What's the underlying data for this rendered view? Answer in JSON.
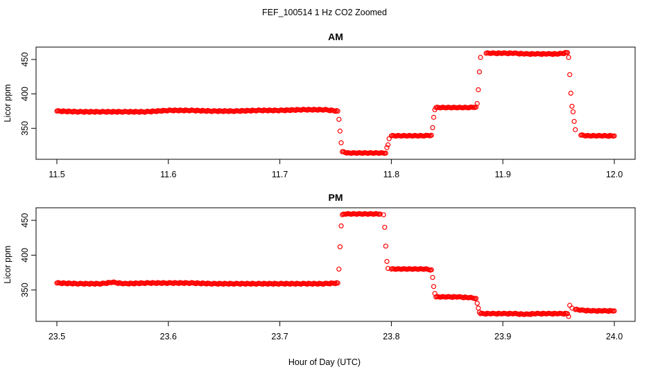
{
  "figure": {
    "title": "FEF_100514  1 Hz CO2 Zoomed",
    "xlabel": "Hour of Day (UTC)"
  },
  "chart_data": [
    {
      "type": "scatter",
      "title": "AM",
      "xlabel": "Hour of Day (UTC)",
      "ylabel": "Licor ppm",
      "xlim": [
        11.5,
        12.0
      ],
      "ylim": [
        305,
        468
      ],
      "xticks": [
        11.5,
        11.6,
        11.7,
        11.8,
        11.9,
        12.0
      ],
      "xtick_labels": [
        "11.5",
        "11.6",
        "11.7",
        "11.8",
        "11.9",
        "12.0"
      ],
      "yticks": [
        350,
        400,
        450
      ],
      "ytick_labels": [
        "350",
        "400",
        "450"
      ],
      "grid": false,
      "marker_color": "#ff0000",
      "series": [
        {
          "x": [
            11.5,
            11.52,
            11.54,
            11.56,
            11.58,
            11.6,
            11.62,
            11.64,
            11.66,
            11.68,
            11.7,
            11.72,
            11.74,
            11.752,
            11.753,
            11.754,
            11.755,
            11.756,
            11.76,
            11.765,
            11.77,
            11.775,
            11.78,
            11.785,
            11.79,
            11.795,
            11.796,
            11.797,
            11.798,
            11.8,
            11.805,
            11.81,
            11.815,
            11.82,
            11.825,
            11.83,
            11.836,
            11.837,
            11.838,
            11.839,
            11.84,
            11.845,
            11.85,
            11.855,
            11.86,
            11.865,
            11.87,
            11.876,
            11.877,
            11.878,
            11.879,
            11.88,
            11.885,
            11.89,
            11.9,
            11.91,
            11.92,
            11.93,
            11.94,
            11.95,
            11.958,
            11.959,
            11.96,
            11.961,
            11.962,
            11.963,
            11.964,
            11.965,
            11.97,
            11.975,
            11.98,
            11.985,
            11.99,
            12.0
          ],
          "y": [
            375,
            374,
            374,
            374,
            374,
            376,
            376,
            375,
            375,
            376,
            376,
            377,
            377,
            375,
            363,
            346,
            329,
            316,
            314,
            314,
            314,
            314,
            314,
            314,
            314,
            314,
            322,
            326,
            335,
            339,
            339,
            339,
            339,
            339,
            339,
            339,
            340,
            351,
            366,
            377,
            380,
            380,
            380,
            380,
            380,
            380,
            380,
            381,
            386,
            406,
            432,
            453,
            459,
            459,
            459,
            459,
            458,
            458,
            458,
            458,
            460,
            453,
            428,
            401,
            382,
            374,
            360,
            348,
            340,
            339,
            339,
            339,
            339,
            339
          ]
        }
      ]
    },
    {
      "type": "scatter",
      "title": "PM",
      "xlabel": "Hour of Day (UTC)",
      "ylabel": "Licor ppm",
      "xlim": [
        23.5,
        24.0
      ],
      "ylim": [
        305,
        468
      ],
      "xticks": [
        23.5,
        23.6,
        23.7,
        23.8,
        23.9,
        24.0
      ],
      "xtick_labels": [
        "23.5",
        "23.6",
        "23.7",
        "23.8",
        "23.9",
        "24.0"
      ],
      "yticks": [
        350,
        400,
        450
      ],
      "ytick_labels": [
        "350",
        "400",
        "450"
      ],
      "grid": false,
      "marker_color": "#ff0000",
      "series": [
        {
          "x": [
            23.5,
            23.52,
            23.54,
            23.55,
            23.56,
            23.58,
            23.6,
            23.62,
            23.64,
            23.66,
            23.68,
            23.7,
            23.72,
            23.74,
            23.752,
            23.753,
            23.754,
            23.755,
            23.756,
            23.76,
            23.765,
            23.77,
            23.775,
            23.78,
            23.785,
            23.79,
            23.793,
            23.794,
            23.795,
            23.796,
            23.797,
            23.8,
            23.805,
            23.81,
            23.815,
            23.82,
            23.825,
            23.83,
            23.836,
            23.837,
            23.838,
            23.839,
            23.84,
            23.845,
            23.85,
            23.86,
            23.87,
            23.876,
            23.877,
            23.878,
            23.879,
            23.88,
            23.89,
            23.9,
            23.91,
            23.92,
            23.93,
            23.94,
            23.95,
            23.958,
            23.959,
            23.96,
            23.962,
            23.965,
            23.97,
            23.98,
            23.99,
            24.0
          ],
          "y": [
            360,
            359,
            359,
            361,
            359,
            360,
            360,
            360,
            359,
            359,
            359,
            359,
            359,
            359,
            360,
            380,
            412,
            442,
            458,
            459,
            459,
            459,
            459,
            459,
            459,
            459,
            458,
            440,
            413,
            391,
            381,
            380,
            380,
            380,
            380,
            380,
            380,
            380,
            379,
            368,
            355,
            345,
            340,
            340,
            340,
            340,
            339,
            338,
            331,
            324,
            318,
            316,
            316,
            316,
            316,
            315,
            316,
            316,
            316,
            316,
            312,
            328,
            324,
            322,
            321,
            320,
            320,
            320
          ]
        }
      ]
    }
  ]
}
